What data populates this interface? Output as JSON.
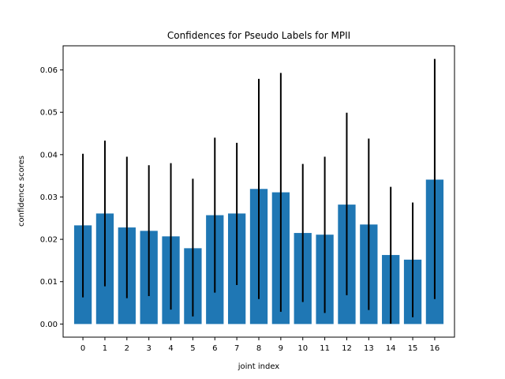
{
  "chart_data": {
    "type": "bar",
    "title": "Confidences for Pseudo Labels for MPII",
    "xlabel": "joint index",
    "ylabel": "confidence scores",
    "categories": [
      "0",
      "1",
      "2",
      "3",
      "4",
      "5",
      "6",
      "7",
      "8",
      "9",
      "10",
      "11",
      "12",
      "13",
      "14",
      "15",
      "16"
    ],
    "values": [
      0.0233,
      0.0261,
      0.0228,
      0.022,
      0.0207,
      0.0179,
      0.0257,
      0.0261,
      0.0319,
      0.0311,
      0.0215,
      0.0211,
      0.0282,
      0.0235,
      0.0163,
      0.0152,
      0.0341
    ],
    "error_low": [
      0.0063,
      0.0089,
      0.0061,
      0.0066,
      0.0034,
      0.0018,
      0.0074,
      0.0092,
      0.0059,
      0.0029,
      0.0052,
      0.0026,
      0.0068,
      0.0033,
      0.0001,
      0.0016,
      0.0059
    ],
    "error_high": [
      0.0402,
      0.0433,
      0.0395,
      0.0375,
      0.038,
      0.0343,
      0.044,
      0.0428,
      0.0579,
      0.0593,
      0.0378,
      0.0395,
      0.0499,
      0.0438,
      0.0324,
      0.0287,
      0.0626
    ],
    "yticks": [
      "0.00",
      "0.01",
      "0.02",
      "0.03",
      "0.04",
      "0.05",
      "0.06"
    ],
    "ytick_values": [
      0,
      0.01,
      0.02,
      0.03,
      0.04,
      0.05,
      0.06
    ],
    "ylim": [
      -0.0031,
      0.0657
    ],
    "xlim": [
      -0.9,
      16.9
    ],
    "grid": false,
    "colors": {
      "bar": "#1f77b4",
      "error": "#000000",
      "axis": "#000000"
    }
  }
}
